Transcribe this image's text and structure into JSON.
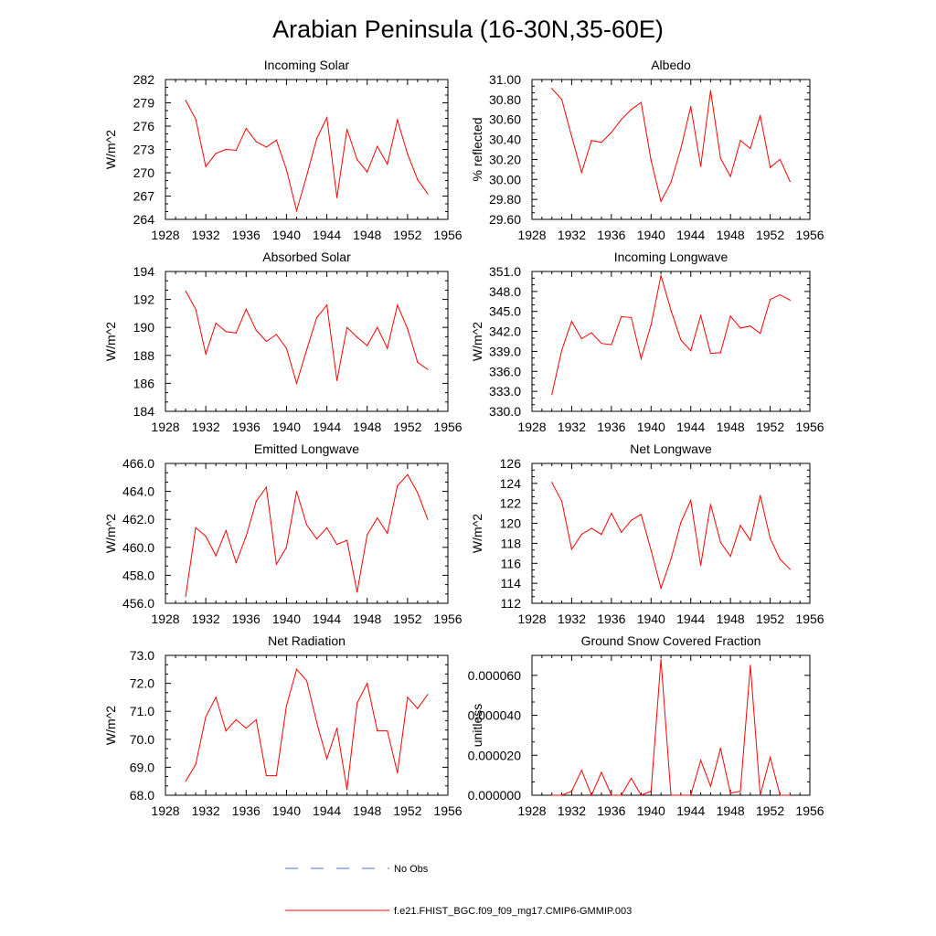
{
  "title": "Arabian Peninsula (16-30N,35-60E)",
  "colors": {
    "model": "#ff0000",
    "obs": "#4a6fd8",
    "axis": "#000000"
  },
  "legend": {
    "obs_label": "No Obs",
    "model_label": "f.e21.FHIST_BGC.f09_f09_mg17.CMIP6-GMMIP.003"
  },
  "chart_data": [
    {
      "type": "line",
      "title": "Incoming Solar",
      "ylabel": "W/m^2",
      "xlim": [
        1928,
        1956
      ],
      "xticks": [
        1928,
        1932,
        1936,
        1940,
        1944,
        1948,
        1952,
        1956
      ],
      "ylim": [
        264,
        282
      ],
      "yticks": [
        264,
        267,
        270,
        273,
        276,
        279,
        282
      ],
      "ytick_labels": [
        "264",
        "267",
        "270",
        "273",
        "276",
        "279",
        "282"
      ],
      "x": [
        1930,
        1931,
        1932,
        1933,
        1934,
        1935,
        1936,
        1937,
        1938,
        1939,
        1940,
        1941,
        1942,
        1943,
        1944,
        1945,
        1946,
        1947,
        1948,
        1949,
        1950,
        1951,
        1952,
        1953,
        1954
      ],
      "series": [
        {
          "name": "f.e21.FHIST_BGC.f09_f09_mg17.CMIP6-GMMIP.003",
          "values": [
            279.3,
            276.9,
            270.8,
            272.5,
            273.0,
            272.9,
            275.7,
            274.0,
            273.3,
            274.2,
            270.4,
            265.1,
            269.6,
            274.4,
            277.1,
            266.8,
            275.6,
            271.7,
            270.1,
            273.4,
            271.1,
            276.8,
            272.4,
            269.1,
            267.3
          ]
        }
      ]
    },
    {
      "type": "line",
      "title": "Albedo",
      "ylabel": "% reflected",
      "xlim": [
        1928,
        1956
      ],
      "xticks": [
        1928,
        1932,
        1936,
        1940,
        1944,
        1948,
        1952,
        1956
      ],
      "ylim": [
        29.6,
        31.0
      ],
      "yticks": [
        29.6,
        29.8,
        30.0,
        30.2,
        30.4,
        30.6,
        30.8,
        31.0
      ],
      "ytick_labels": [
        "29.60",
        "29.80",
        "30.00",
        "30.20",
        "30.40",
        "30.60",
        "30.80",
        "31.00"
      ],
      "x": [
        1930,
        1931,
        1932,
        1933,
        1934,
        1935,
        1936,
        1937,
        1938,
        1939,
        1940,
        1941,
        1942,
        1943,
        1944,
        1945,
        1946,
        1947,
        1948,
        1949,
        1950,
        1951,
        1952,
        1953,
        1954
      ],
      "series": [
        {
          "name": "f.e21.FHIST_BGC.f09_f09_mg17.CMIP6-GMMIP.003",
          "values": [
            30.91,
            30.8,
            30.43,
            30.07,
            30.39,
            30.37,
            30.47,
            30.6,
            30.7,
            30.77,
            30.19,
            29.78,
            29.97,
            30.31,
            30.73,
            30.13,
            30.89,
            30.21,
            30.03,
            30.39,
            30.31,
            30.64,
            30.12,
            30.2,
            29.98
          ]
        }
      ]
    },
    {
      "type": "line",
      "title": "Absorbed Solar",
      "ylabel": "W/m^2",
      "xlim": [
        1928,
        1956
      ],
      "xticks": [
        1928,
        1932,
        1936,
        1940,
        1944,
        1948,
        1952,
        1956
      ],
      "ylim": [
        184,
        194
      ],
      "yticks": [
        184,
        186,
        188,
        190,
        192,
        194
      ],
      "ytick_labels": [
        "184",
        "186",
        "188",
        "190",
        "192",
        "194"
      ],
      "x": [
        1930,
        1931,
        1932,
        1933,
        1934,
        1935,
        1936,
        1937,
        1938,
        1939,
        1940,
        1941,
        1942,
        1943,
        1944,
        1945,
        1946,
        1947,
        1948,
        1949,
        1950,
        1951,
        1952,
        1953,
        1954
      ],
      "series": [
        {
          "name": "f.e21.FHIST_BGC.f09_f09_mg17.CMIP6-GMMIP.003",
          "values": [
            192.6,
            191.3,
            188.1,
            190.3,
            189.7,
            189.6,
            191.3,
            189.8,
            189.0,
            189.5,
            188.5,
            186.0,
            188.4,
            190.7,
            191.6,
            186.2,
            190.0,
            189.3,
            188.7,
            190.0,
            188.5,
            191.6,
            189.9,
            187.5,
            187.0
          ]
        }
      ]
    },
    {
      "type": "line",
      "title": "Incoming Longwave",
      "ylabel": "W/m^2",
      "xlim": [
        1928,
        1956
      ],
      "xticks": [
        1928,
        1932,
        1936,
        1940,
        1944,
        1948,
        1952,
        1956
      ],
      "ylim": [
        330,
        351
      ],
      "yticks": [
        330,
        333,
        336,
        339,
        342,
        345,
        348,
        351
      ],
      "ytick_labels": [
        "330.0",
        "333.0",
        "336.0",
        "339.0",
        "342.0",
        "345.0",
        "348.0",
        "351.0"
      ],
      "x": [
        1930,
        1931,
        1932,
        1933,
        1934,
        1935,
        1936,
        1937,
        1938,
        1939,
        1940,
        1941,
        1942,
        1943,
        1944,
        1945,
        1946,
        1947,
        1948,
        1949,
        1950,
        1951,
        1952,
        1953,
        1954
      ],
      "series": [
        {
          "name": "f.e21.FHIST_BGC.f09_f09_mg17.CMIP6-GMMIP.003",
          "values": [
            332.5,
            339.2,
            343.5,
            340.9,
            341.8,
            340.2,
            340.0,
            344.2,
            344.1,
            337.9,
            343.0,
            350.4,
            345.2,
            340.7,
            339.1,
            344.4,
            338.7,
            338.8,
            344.3,
            342.5,
            342.8,
            341.7,
            346.8,
            347.5,
            346.7
          ]
        }
      ]
    },
    {
      "type": "line",
      "title": "Emitted Longwave",
      "ylabel": "W/m^2",
      "xlim": [
        1928,
        1956
      ],
      "xticks": [
        1928,
        1932,
        1936,
        1940,
        1944,
        1948,
        1952,
        1956
      ],
      "ylim": [
        456,
        466
      ],
      "yticks": [
        456,
        458,
        460,
        462,
        464,
        466
      ],
      "ytick_labels": [
        "456.0",
        "458.0",
        "460.0",
        "462.0",
        "464.0",
        "466.0"
      ],
      "x": [
        1930,
        1931,
        1932,
        1933,
        1934,
        1935,
        1936,
        1937,
        1938,
        1939,
        1940,
        1941,
        1942,
        1943,
        1944,
        1945,
        1946,
        1947,
        1948,
        1949,
        1950,
        1951,
        1952,
        1953,
        1954
      ],
      "series": [
        {
          "name": "f.e21.FHIST_BGC.f09_f09_mg17.CMIP6-GMMIP.003",
          "values": [
            456.5,
            461.4,
            460.8,
            459.4,
            461.2,
            458.9,
            460.8,
            463.3,
            464.3,
            458.8,
            460.0,
            464.0,
            461.6,
            460.6,
            461.4,
            460.2,
            460.5,
            456.8,
            460.9,
            462.1,
            461.0,
            464.4,
            465.2,
            463.9,
            462.0
          ]
        }
      ]
    },
    {
      "type": "line",
      "title": "Net Longwave",
      "ylabel": "W/m^2",
      "xlim": [
        1928,
        1956
      ],
      "xticks": [
        1928,
        1932,
        1936,
        1940,
        1944,
        1948,
        1952,
        1956
      ],
      "ylim": [
        112,
        126
      ],
      "yticks": [
        112,
        114,
        116,
        118,
        120,
        122,
        124,
        126
      ],
      "ytick_labels": [
        "112",
        "114",
        "116",
        "118",
        "120",
        "122",
        "124",
        "126"
      ],
      "x": [
        1930,
        1931,
        1932,
        1933,
        1934,
        1935,
        1936,
        1937,
        1938,
        1939,
        1940,
        1941,
        1942,
        1943,
        1944,
        1945,
        1946,
        1947,
        1948,
        1949,
        1950,
        1951,
        1952,
        1953,
        1954
      ],
      "series": [
        {
          "name": "f.e21.FHIST_BGC.f09_f09_mg17.CMIP6-GMMIP.003",
          "values": [
            124.1,
            122.2,
            117.4,
            118.9,
            119.5,
            118.9,
            121.0,
            119.1,
            120.3,
            120.9,
            117.3,
            113.5,
            116.4,
            120.1,
            122.3,
            115.8,
            121.9,
            118.1,
            116.7,
            119.8,
            118.3,
            122.8,
            118.5,
            116.4,
            115.4
          ]
        }
      ]
    },
    {
      "type": "line",
      "title": "Net Radiation",
      "ylabel": "W/m^2",
      "xlim": [
        1928,
        1956
      ],
      "xticks": [
        1928,
        1932,
        1936,
        1940,
        1944,
        1948,
        1952,
        1956
      ],
      "ylim": [
        68,
        73
      ],
      "yticks": [
        68,
        69,
        70,
        71,
        72,
        73
      ],
      "ytick_labels": [
        "68.0",
        "69.0",
        "70.0",
        "71.0",
        "72.0",
        "73.0"
      ],
      "x": [
        1930,
        1931,
        1932,
        1933,
        1934,
        1935,
        1936,
        1937,
        1938,
        1939,
        1940,
        1941,
        1942,
        1943,
        1944,
        1945,
        1946,
        1947,
        1948,
        1949,
        1950,
        1951,
        1952,
        1953,
        1954
      ],
      "series": [
        {
          "name": "f.e21.FHIST_BGC.f09_f09_mg17.CMIP6-GMMIP.003",
          "values": [
            68.5,
            69.1,
            70.8,
            71.5,
            70.3,
            70.7,
            70.4,
            70.7,
            68.7,
            68.7,
            71.2,
            72.5,
            72.1,
            70.6,
            69.3,
            70.4,
            68.2,
            71.3,
            72.0,
            70.3,
            70.3,
            68.8,
            71.5,
            71.1,
            71.6
          ]
        }
      ]
    },
    {
      "type": "line",
      "title": "Ground Snow Covered Fraction",
      "ylabel": "unitless",
      "xlim": [
        1928,
        1956
      ],
      "xticks": [
        1928,
        1932,
        1936,
        1940,
        1944,
        1948,
        1952,
        1956
      ],
      "ylim": [
        0,
        7e-05
      ],
      "yticks": [
        0,
        2e-05,
        4e-05,
        6e-05
      ],
      "ytick_labels": [
        "0.000000",
        "0.000020",
        "0.000040",
        "0.000060"
      ],
      "x": [
        1930,
        1931,
        1932,
        1933,
        1934,
        1935,
        1936,
        1937,
        1938,
        1939,
        1940,
        1941,
        1942,
        1943,
        1944,
        1945,
        1946,
        1947,
        1948,
        1949,
        1950,
        1951,
        1952,
        1953,
        1954
      ],
      "series": [
        {
          "name": "f.e21.FHIST_BGC.f09_f09_mg17.CMIP6-GMMIP.003",
          "values": [
            0,
            0,
            2e-06,
            1.25e-05,
            0,
            1.15e-05,
            0,
            0,
            8.5e-06,
            0,
            2e-06,
            6.8e-05,
            0,
            0,
            0,
            1.75e-05,
            4.5e-06,
            2.35e-05,
            1e-06,
            2e-06,
            6.5e-05,
            0,
            1.9e-05,
            0,
            0
          ]
        }
      ]
    }
  ]
}
